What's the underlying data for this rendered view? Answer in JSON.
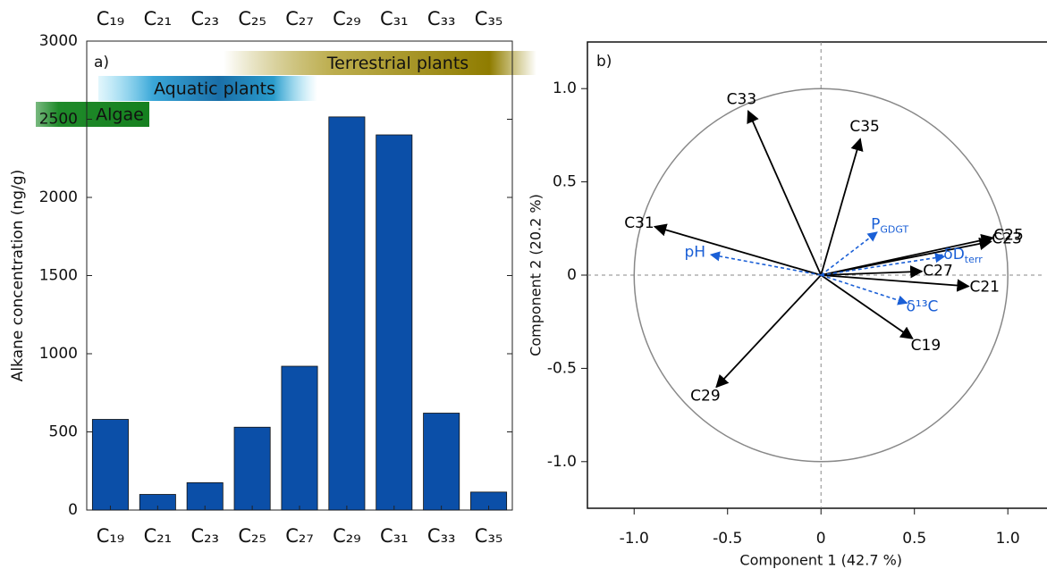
{
  "chart_data": [
    {
      "type": "bar",
      "panel_label": "a)",
      "y_label": "Alkane concentration (ng/g)",
      "categories": [
        "C₁₉",
        "C₂₁",
        "C₂₃",
        "C₂₅",
        "C₂₇",
        "C₂₉",
        "C₃₁",
        "C₃₃",
        "C₃₅"
      ],
      "values": [
        580,
        100,
        175,
        530,
        920,
        2515,
        2400,
        620,
        115
      ],
      "color": "#0b4fa8",
      "ylim": [
        0,
        3000
      ],
      "yticks": [
        0,
        500,
        1000,
        1500,
        2000,
        2500,
        3000
      ],
      "bands": [
        {
          "label": "Terrestrial plants",
          "gradient": "g-terr"
        },
        {
          "label": "Aquatic plants",
          "gradient": "g-aqua"
        },
        {
          "label": "Algae",
          "gradient": "g-alg"
        }
      ]
    },
    {
      "type": "biplot",
      "panel_label": "b)",
      "x_label": "Component 1  (42.7 %)",
      "y_label": "Component 2  (20.2 %)",
      "xlim": [
        -1.25,
        1.2
      ],
      "ylim": [
        -1.25,
        1.25
      ],
      "xticks": [
        {
          "value": -1,
          "label": "-1.0"
        },
        {
          "value": -0.5,
          "label": "-0.5"
        },
        0,
        0.5,
        {
          "value": 1,
          "label": "1.0"
        }
      ],
      "yticks": [
        {
          "value": -1,
          "label": "-1.0"
        },
        {
          "value": -0.5,
          "label": "-0.5"
        },
        0,
        0.5,
        {
          "value": 1,
          "label": "1.0"
        }
      ],
      "vectors": [
        {
          "name": "C33",
          "x": -0.39,
          "y": 0.88,
          "color": "#000000",
          "dashed": false
        },
        {
          "name": "C35",
          "x": 0.21,
          "y": 0.73,
          "color": "#000000",
          "dashed": false
        },
        {
          "name": "C31",
          "x": -0.89,
          "y": 0.26,
          "color": "#000000",
          "dashed": false
        },
        {
          "name": "C25",
          "x": 0.92,
          "y": 0.2,
          "color": "#000000",
          "dashed": false
        },
        {
          "name": "C23",
          "x": 0.91,
          "y": 0.18,
          "color": "#000000",
          "dashed": false
        },
        {
          "name": "C27",
          "x": 0.54,
          "y": 0.02,
          "color": "#000000",
          "dashed": false
        },
        {
          "name": "C21",
          "x": 0.79,
          "y": -0.06,
          "color": "#000000",
          "dashed": false
        },
        {
          "name": "C19",
          "x": 0.49,
          "y": -0.34,
          "color": "#000000",
          "dashed": false
        },
        {
          "name": "C29",
          "x": -0.56,
          "y": -0.6,
          "color": "#000000",
          "dashed": false
        },
        {
          "name": "P",
          "sub": "GDGT",
          "x": 0.3,
          "y": 0.23,
          "color": "#1a5fd6",
          "dashed": true
        },
        {
          "name": "pH",
          "x": -0.59,
          "y": 0.11,
          "color": "#1a5fd6",
          "dashed": true
        },
        {
          "name": "-δD",
          "sub": "terr",
          "x": 0.66,
          "y": 0.1,
          "color": "#1a5fd6",
          "dashed": true
        },
        {
          "name": "δ¹³C",
          "x": 0.46,
          "y": -0.15,
          "color": "#1a5fd6",
          "dashed": true
        }
      ]
    }
  ]
}
